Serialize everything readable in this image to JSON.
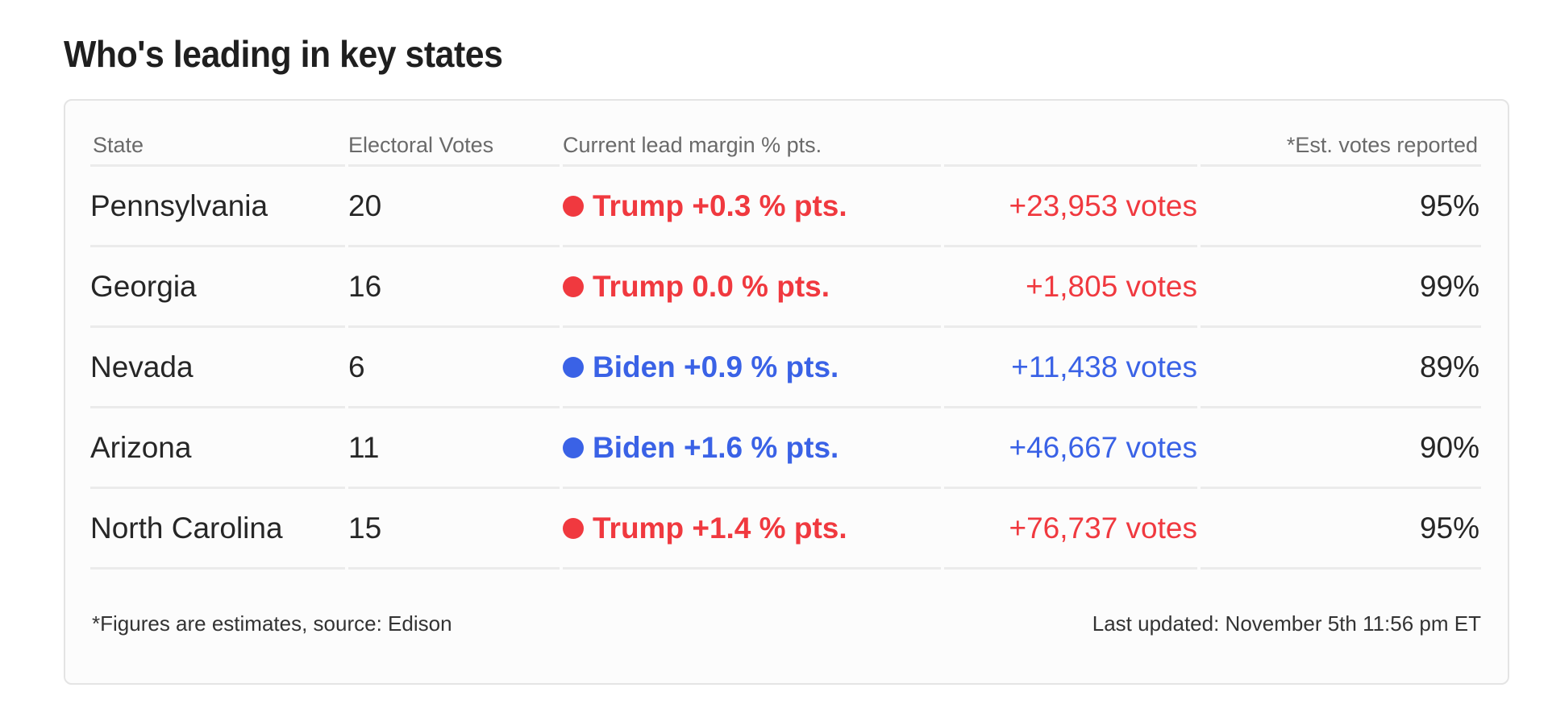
{
  "title": "Who's leading in key states",
  "columns": {
    "state": "State",
    "electoral_votes": "Electoral Votes",
    "lead_margin": "Current lead margin % pts.",
    "votes_margin": "",
    "reported": "*Est. votes reported"
  },
  "colors": {
    "trump": "#f0393f",
    "biden": "#3a62e6"
  },
  "rows": [
    {
      "state": "Pennsylvania",
      "ev": "20",
      "party": "trump",
      "lead": "Trump +0.3 % pts.",
      "votes": "+23,953 votes",
      "reported": "95%"
    },
    {
      "state": "Georgia",
      "ev": "16",
      "party": "trump",
      "lead": "Trump 0.0 % pts.",
      "votes": "+1,805 votes",
      "reported": "99%"
    },
    {
      "state": "Nevada",
      "ev": "6",
      "party": "biden",
      "lead": "Biden +0.9 % pts.",
      "votes": "+11,438 votes",
      "reported": "89%"
    },
    {
      "state": "Arizona",
      "ev": "11",
      "party": "biden",
      "lead": "Biden +1.6 % pts.",
      "votes": "+46,667 votes",
      "reported": "90%"
    },
    {
      "state": "North Carolina",
      "ev": "15",
      "party": "trump",
      "lead": "Trump +1.4 % pts.",
      "votes": "+76,737 votes",
      "reported": "95%"
    }
  ],
  "footer": {
    "note": "*Figures are estimates, source: Edison",
    "updated": "Last updated: November 5th 11:56 pm ET"
  }
}
